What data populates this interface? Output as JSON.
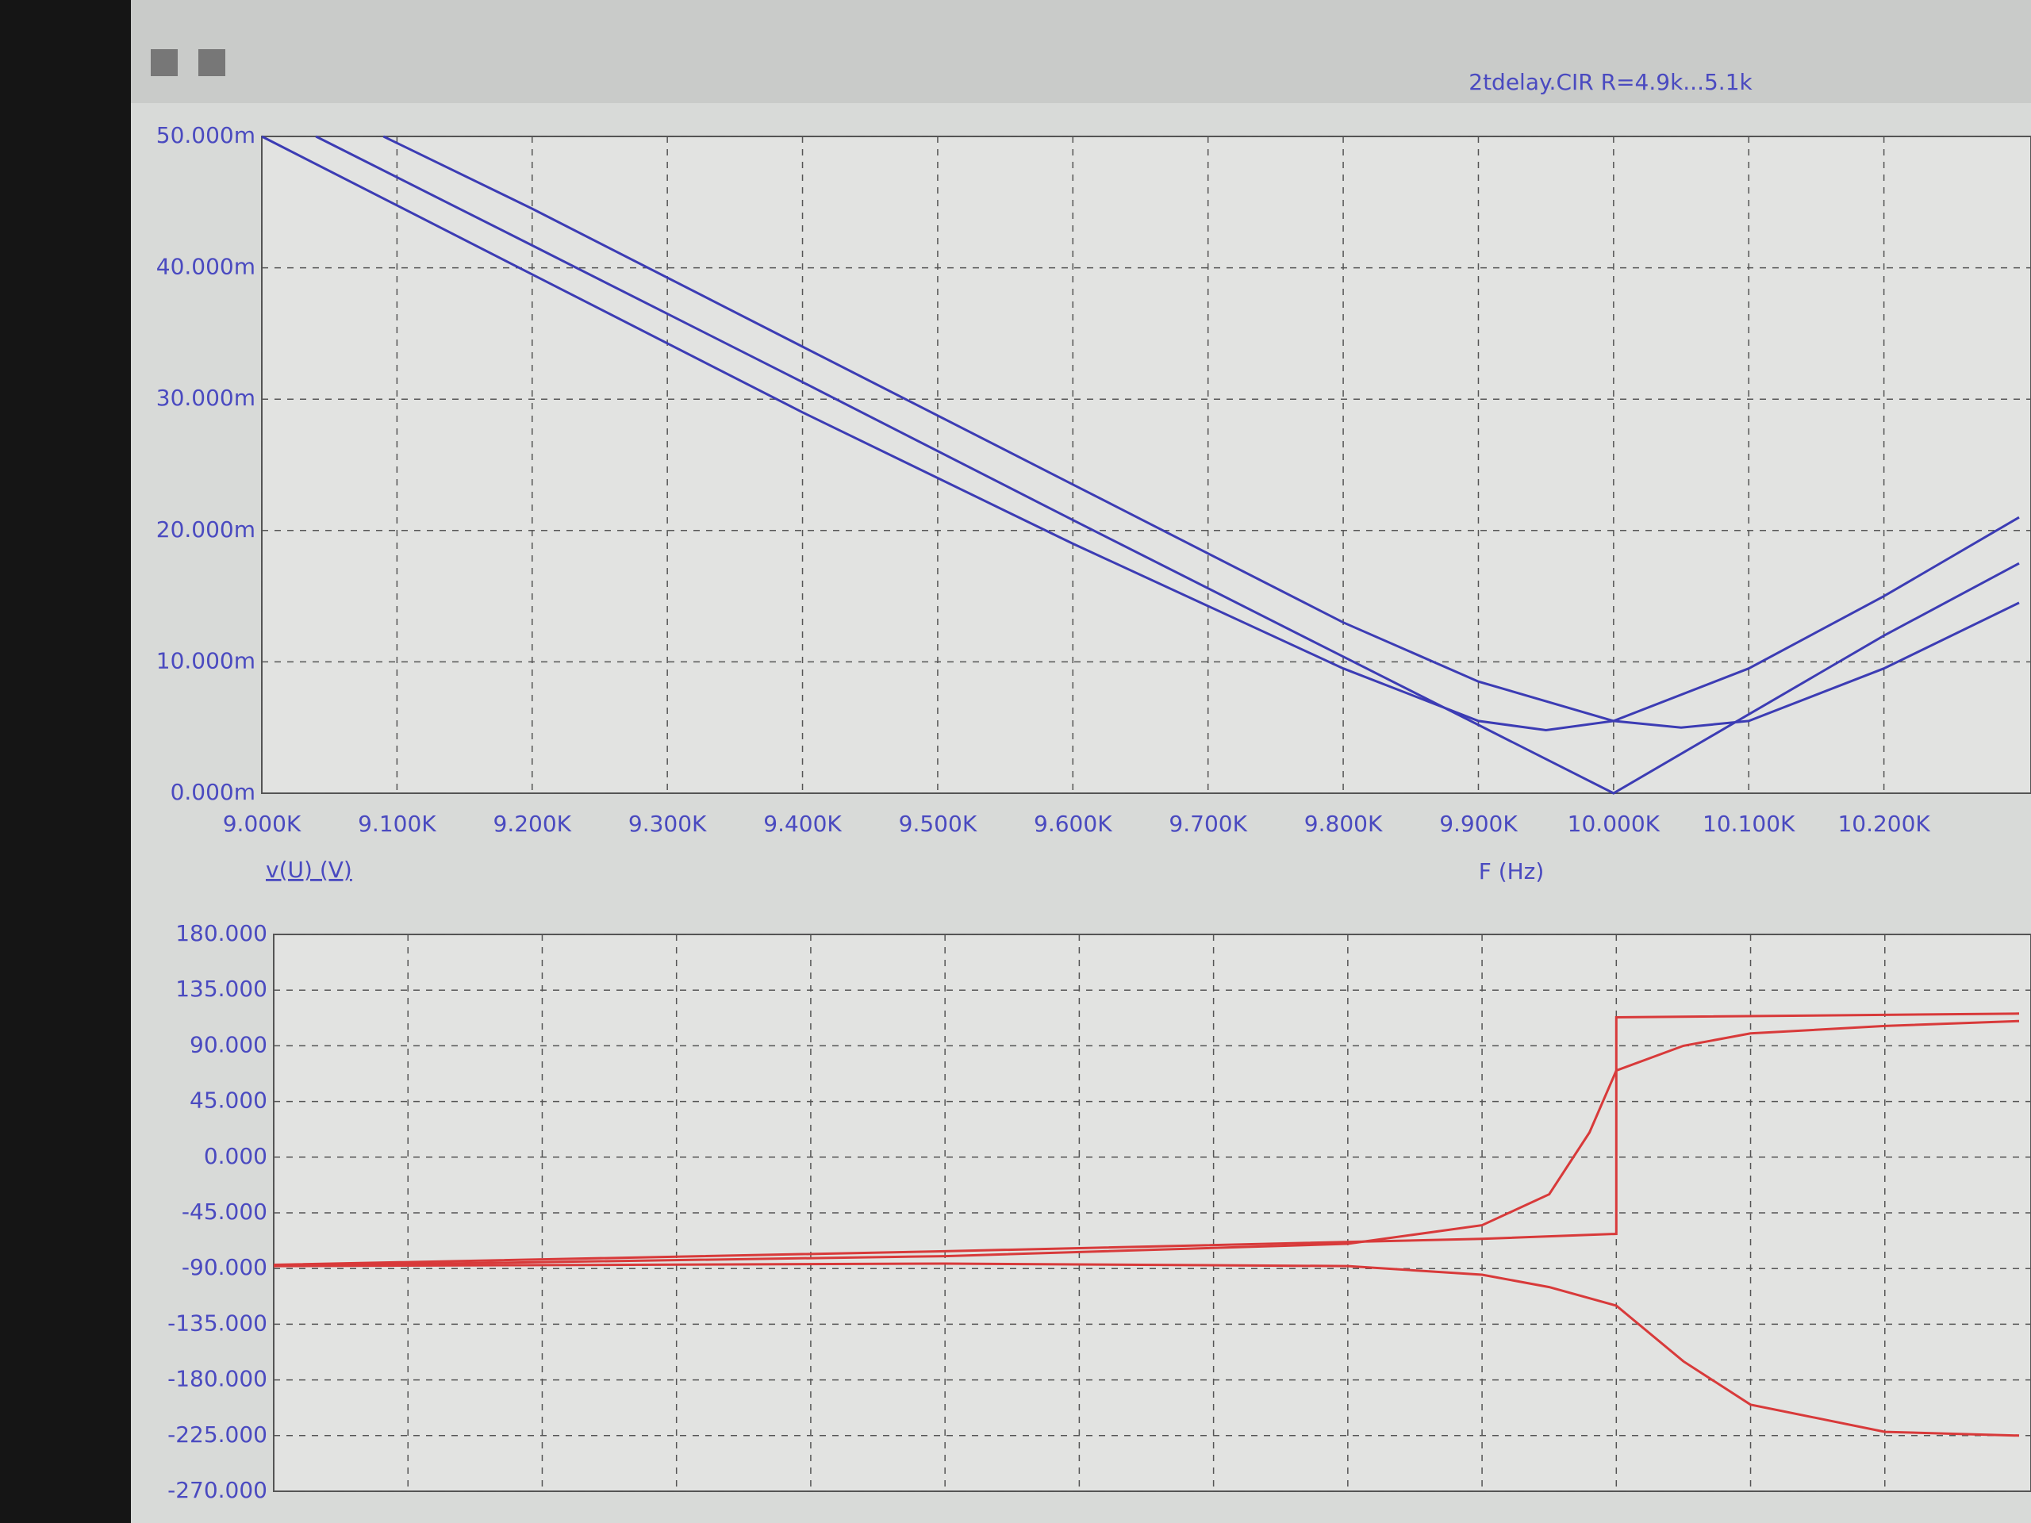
{
  "chart_data": [
    {
      "type": "line",
      "title": "2tdelay.CIR R=4.9k...5.1k",
      "xlabel": "F (Hz)",
      "ylabel": "v(U) (V)",
      "xlim": [
        9000,
        10300
      ],
      "ylim": [
        0,
        0.05
      ],
      "xticks": [
        {
          "value": 9000,
          "label": "9.000K"
        },
        {
          "value": 9100,
          "label": "9.100K"
        },
        {
          "value": 9200,
          "label": "9.200K"
        },
        {
          "value": 9300,
          "label": "9.300K"
        },
        {
          "value": 9400,
          "label": "9.400K"
        },
        {
          "value": 9500,
          "label": "9.500K"
        },
        {
          "value": 9600,
          "label": "9.600K"
        },
        {
          "value": 9700,
          "label": "9.700K"
        },
        {
          "value": 9800,
          "label": "9.800K"
        },
        {
          "value": 9900,
          "label": "9.900K"
        },
        {
          "value": 10000,
          "label": "10.000K"
        },
        {
          "value": 10100,
          "label": "10.100K"
        },
        {
          "value": 10200,
          "label": "10.200K"
        }
      ],
      "yticks": [
        {
          "value": 0,
          "label": "0.000m"
        },
        {
          "value": 0.01,
          "label": "10.000m"
        },
        {
          "value": 0.02,
          "label": "20.000m"
        },
        {
          "value": 0.03,
          "label": "30.000m"
        },
        {
          "value": 0.04,
          "label": "40.000m"
        },
        {
          "value": 0.05,
          "label": "50.000m"
        }
      ],
      "grid": true,
      "series": [
        {
          "color": "#3c3cb4",
          "x": [
            9000,
            9200,
            9400,
            9600,
            9800,
            9900,
            9950,
            10000,
            10100,
            10200,
            10300
          ],
          "values": [
            0.05,
            0.0395,
            0.029,
            0.019,
            0.0095,
            0.0055,
            0.0048,
            0.0055,
            0.0095,
            0.015,
            0.021
          ]
        },
        {
          "color": "#3c3cb4",
          "x": [
            9040,
            9200,
            9400,
            9600,
            9800,
            9900,
            10000,
            10100,
            10200,
            10300
          ],
          "values": [
            0.05,
            0.0417,
            0.0313,
            0.0208,
            0.0104,
            0.0052,
            0,
            0.006,
            0.012,
            0.0175
          ]
        },
        {
          "color": "#3c3cb4",
          "x": [
            9090,
            9200,
            9400,
            9600,
            9800,
            9900,
            10000,
            10050,
            10100,
            10200,
            10300
          ],
          "values": [
            0.05,
            0.0445,
            0.034,
            0.0235,
            0.013,
            0.0085,
            0.0055,
            0.005,
            0.0055,
            0.0095,
            0.0145
          ]
        }
      ]
    },
    {
      "type": "line",
      "xlim": [
        9000,
        10300
      ],
      "ylim": [
        -270,
        180
      ],
      "xticks": [
        9000,
        9100,
        9200,
        9300,
        9400,
        9500,
        9600,
        9700,
        9800,
        9900,
        10000,
        10100,
        10200
      ],
      "yticks": [
        {
          "value": 180,
          "label": "180.000"
        },
        {
          "value": 135,
          "label": "135.000"
        },
        {
          "value": 90,
          "label": "90.000"
        },
        {
          "value": 45,
          "label": "45.000"
        },
        {
          "value": 0,
          "label": "0.000"
        },
        {
          "value": -45,
          "label": "-45.000"
        },
        {
          "value": -90,
          "label": "-90.000"
        },
        {
          "value": -135,
          "label": "-135.000"
        },
        {
          "value": -180,
          "label": "-180.000"
        },
        {
          "value": -225,
          "label": "-225.000"
        },
        {
          "value": -270,
          "label": "-270.000"
        }
      ],
      "grid": true,
      "series": [
        {
          "color": "#d83a3a",
          "x": [
            9000,
            9500,
            9800,
            9900,
            9950,
            9980,
            10000,
            10050,
            10100,
            10200,
            10300
          ],
          "values": [
            -88,
            -80,
            -70,
            -55,
            -30,
            20,
            70,
            90,
            100,
            106,
            110
          ]
        },
        {
          "color": "#d83a3a",
          "x": [
            9000,
            9500,
            9900,
            10000,
            10000,
            10300
          ],
          "values": [
            -87,
            -76,
            -66,
            -62,
            113,
            116
          ]
        },
        {
          "color": "#d83a3a",
          "x": [
            9000,
            9500,
            9800,
            9900,
            9950,
            10000,
            10050,
            10100,
            10200,
            10300
          ],
          "values": [
            -88,
            -86,
            -88,
            -95,
            -105,
            -120,
            -165,
            -200,
            -222,
            -225
          ]
        }
      ]
    }
  ]
}
